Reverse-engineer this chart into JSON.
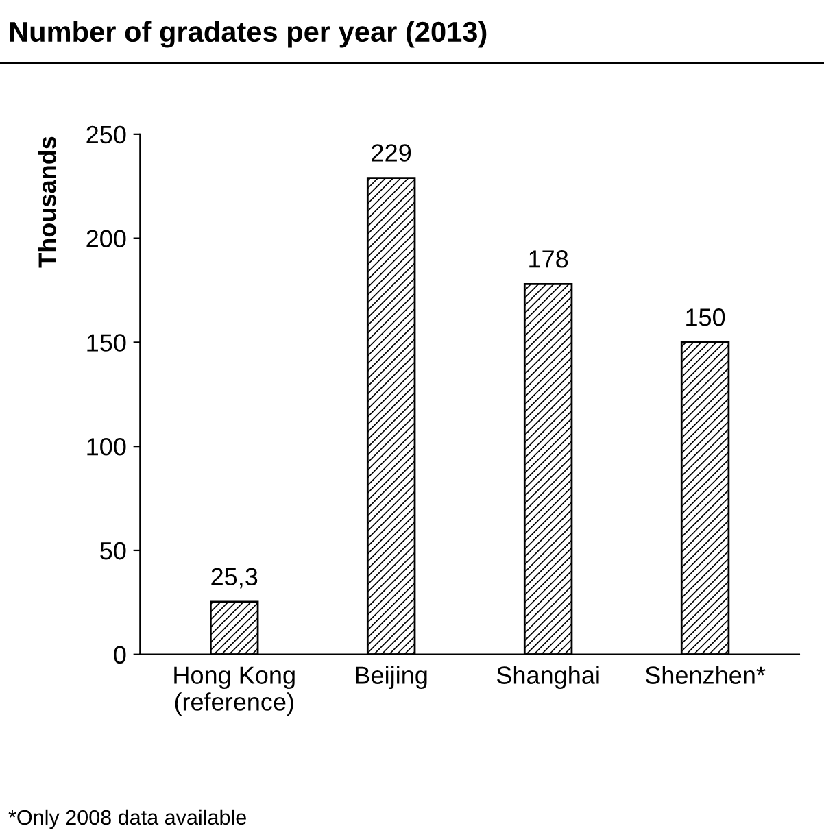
{
  "chart_data": {
    "type": "bar",
    "title": "Number of gradates per year (2013)",
    "ylabel": "Thousands",
    "categories": [
      "Hong Kong\n(reference)",
      "Beijing",
      "Shanghai",
      "Shenzhen*"
    ],
    "values": [
      25.3,
      229,
      178,
      150
    ],
    "value_labels": [
      "25,3",
      "229",
      "178",
      "150"
    ],
    "color": "#000000",
    "ylim": [
      0,
      250
    ],
    "yticks": [
      0,
      50,
      100,
      150,
      200,
      250
    ],
    "grid": false,
    "legend": false,
    "annotations": [
      "*Only 2008 data available"
    ]
  }
}
